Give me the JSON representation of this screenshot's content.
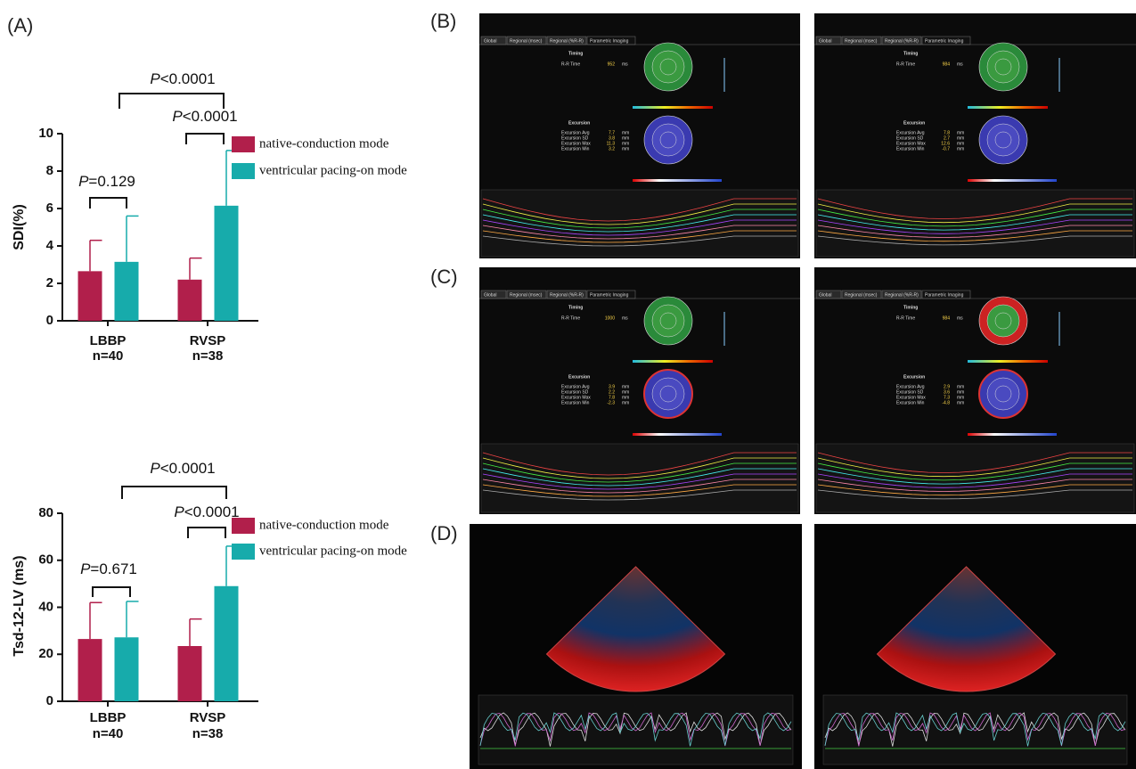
{
  "panel_labels": [
    "(A)",
    "(B)",
    "(C)",
    "(D)"
  ],
  "chart_data": [
    {
      "type": "bar",
      "ylabel": "SDI(%)",
      "categories": [
        "LBBP",
        "RVSP"
      ],
      "category_sublabels": [
        "n=40",
        "n=38"
      ],
      "series": [
        {
          "name": "native-conduction mode",
          "color": "#b11f4b",
          "values": [
            2.65,
            2.2
          ],
          "errors": [
            1.65,
            1.15
          ]
        },
        {
          "name": "ventricular pacing-on mode",
          "color": "#17abab",
          "values": [
            3.15,
            6.15
          ],
          "errors": [
            2.45,
            2.95
          ]
        }
      ],
      "ylim": [
        0,
        10
      ],
      "yticks": [
        0,
        2,
        4,
        6,
        8,
        10
      ],
      "annotations": [
        {
          "italic": "P",
          "text": "=0.129"
        },
        {
          "italic": "P",
          "text": "<0.0001"
        },
        {
          "italic": "P",
          "text": "<0.0001"
        }
      ]
    },
    {
      "type": "bar",
      "ylabel": "Tsd-12-LV (ms)",
      "categories": [
        "LBBP",
        "RVSP"
      ],
      "category_sublabels": [
        "n=40",
        "n=38"
      ],
      "series": [
        {
          "name": "native-conduction mode",
          "color": "#b11f4b",
          "values": [
            26.5,
            23.5
          ],
          "errors": [
            15.5,
            11.5
          ]
        },
        {
          "name": "ventricular pacing-on mode",
          "color": "#17abab",
          "values": [
            27.2,
            49
          ],
          "errors": [
            15.3,
            17
          ]
        }
      ],
      "ylim": [
        0,
        80
      ],
      "yticks": [
        0,
        20,
        40,
        60,
        80
      ],
      "annotations": [
        {
          "italic": "P",
          "text": "=0.671"
        },
        {
          "italic": "P",
          "text": "<0.0001"
        },
        {
          "italic": "P",
          "text": "<0.0001"
        }
      ]
    }
  ],
  "screens": {
    "tabs": [
      "Global",
      "Regional (msec)",
      "Regional (%R-R)",
      "Parametric Imaging"
    ],
    "timing": "Timing",
    "excursion": "Excursion",
    "row_labels": [
      "R-R Time",
      "Excursion Avg",
      "Excursion SD",
      "Excursion Max",
      "Excursion Min"
    ],
    "units": [
      "ms",
      "mm",
      "mm",
      "mm",
      "mm"
    ],
    "panels": [
      {
        "values": [
          952,
          7.7,
          3.8,
          11.3,
          3.2
        ]
      },
      {
        "values": [
          984,
          7.8,
          2.7,
          12.6,
          -0.7
        ]
      },
      {
        "values": [
          1000,
          3.9,
          2.2,
          7.8,
          -2.3
        ]
      },
      {
        "values": [
          984,
          2.9,
          3.6,
          7.3,
          -4.8
        ]
      }
    ]
  }
}
